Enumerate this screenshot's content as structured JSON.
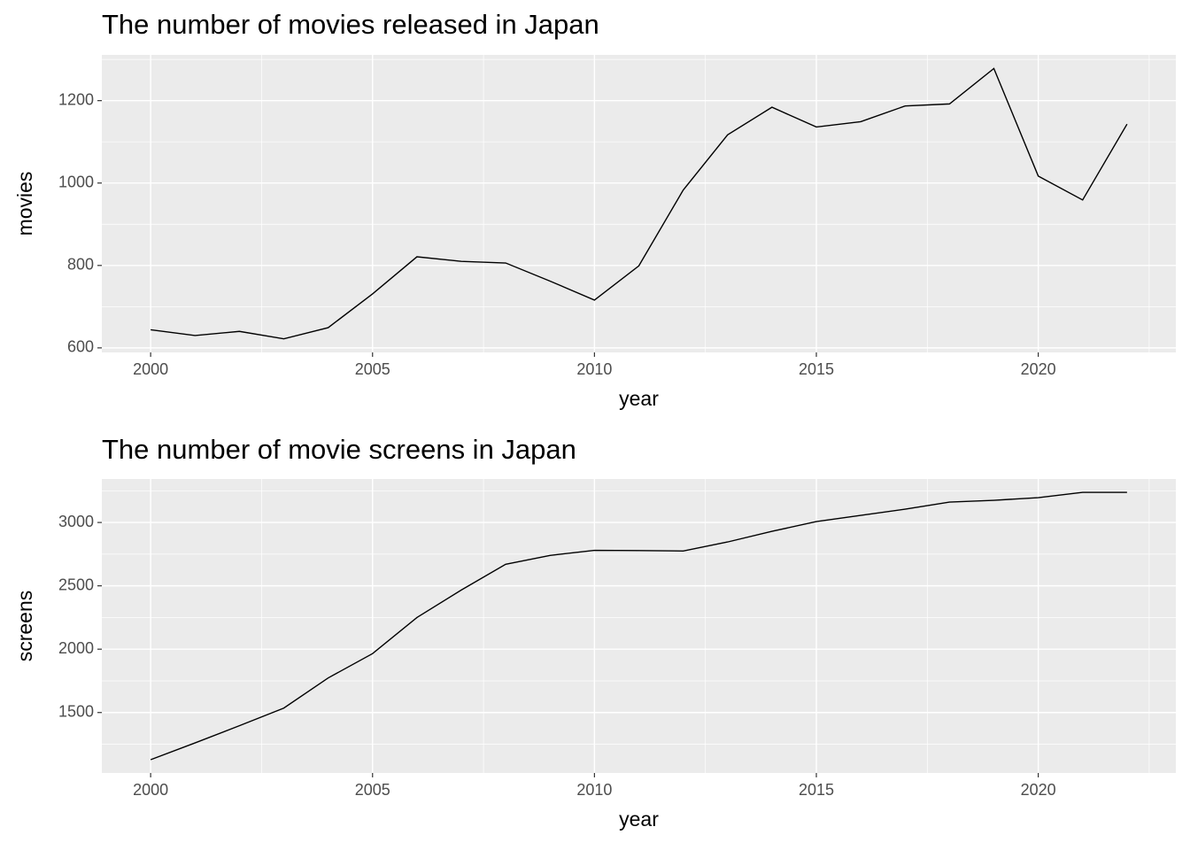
{
  "chart_data": [
    {
      "type": "line",
      "title": "The number of movies released in Japan",
      "x_label": "year",
      "y_label": "movies",
      "x": [
        2000,
        2001,
        2002,
        2003,
        2004,
        2005,
        2006,
        2007,
        2008,
        2009,
        2010,
        2011,
        2012,
        2013,
        2014,
        2015,
        2016,
        2017,
        2018,
        2019,
        2020,
        2021,
        2022
      ],
      "series": [
        {
          "color": "#000000",
          "values": [
            644,
            630,
            640,
            622,
            649,
            731,
            821,
            810,
            806,
            762,
            716,
            799,
            983,
            1117,
            1184,
            1136,
            1149,
            1187,
            1192,
            1278,
            1017,
            959,
            1143
          ]
        }
      ],
      "xlim": [
        1998.9,
        2023.1
      ],
      "xticks": [
        2000,
        2005,
        2010,
        2015,
        2020
      ],
      "ylim": [
        589,
        1311
      ],
      "yticks": [
        600,
        800,
        1000,
        1200
      ],
      "grid": true
    },
    {
      "type": "line",
      "title": "The number of movie screens in Japan",
      "x_label": "year",
      "y_label": "screens",
      "x": [
        2000,
        2001,
        2002,
        2003,
        2004,
        2005,
        2006,
        2007,
        2008,
        2009,
        2010,
        2011,
        2012,
        2013,
        2014,
        2015,
        2016,
        2017,
        2018,
        2019,
        2020,
        2021,
        2022
      ],
      "series": [
        {
          "color": "#000000",
          "values": [
            1128,
            1260,
            1396,
            1535,
            1773,
            1965,
            2250,
            2467,
            2670,
            2740,
            2780,
            2778,
            2775,
            2846,
            2930,
            3007,
            3056,
            3105,
            3161,
            3175,
            3196,
            3238,
            3238
          ]
        }
      ],
      "xlim": [
        1998.9,
        2023.1
      ],
      "xticks": [
        2000,
        2005,
        2010,
        2015,
        2020
      ],
      "ylim": [
        1023,
        3343
      ],
      "yticks": [
        1500,
        2000,
        2500,
        3000
      ],
      "grid": true
    }
  ]
}
